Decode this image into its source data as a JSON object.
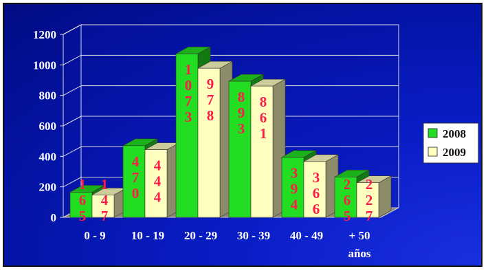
{
  "chart_data": {
    "type": "bar",
    "categories": [
      "0 - 9",
      "10 - 19",
      "20 - 29",
      "30 - 39",
      "40 - 49",
      "+ 50"
    ],
    "category_suffix": "años",
    "series": [
      {
        "name": "2008",
        "values": [
          165,
          470,
          1073,
          893,
          394,
          265
        ],
        "color": "#22dd22",
        "label_digits": [
          "165",
          "470",
          "1073",
          "893",
          "394",
          "265"
        ]
      },
      {
        "name": "2009",
        "values": [
          147,
          444,
          978,
          861,
          366,
          227
        ],
        "color": "#ffffc0",
        "label_digits": [
          "147",
          "444",
          "978",
          "861",
          "366",
          "227"
        ]
      }
    ],
    "ylim": [
      0,
      1200
    ],
    "yticks": [
      "0",
      "200",
      "400",
      "600",
      "800",
      "1000",
      "1200"
    ],
    "grid": true,
    "legend": "right",
    "title": "",
    "xlabel": "",
    "ylabel": ""
  }
}
